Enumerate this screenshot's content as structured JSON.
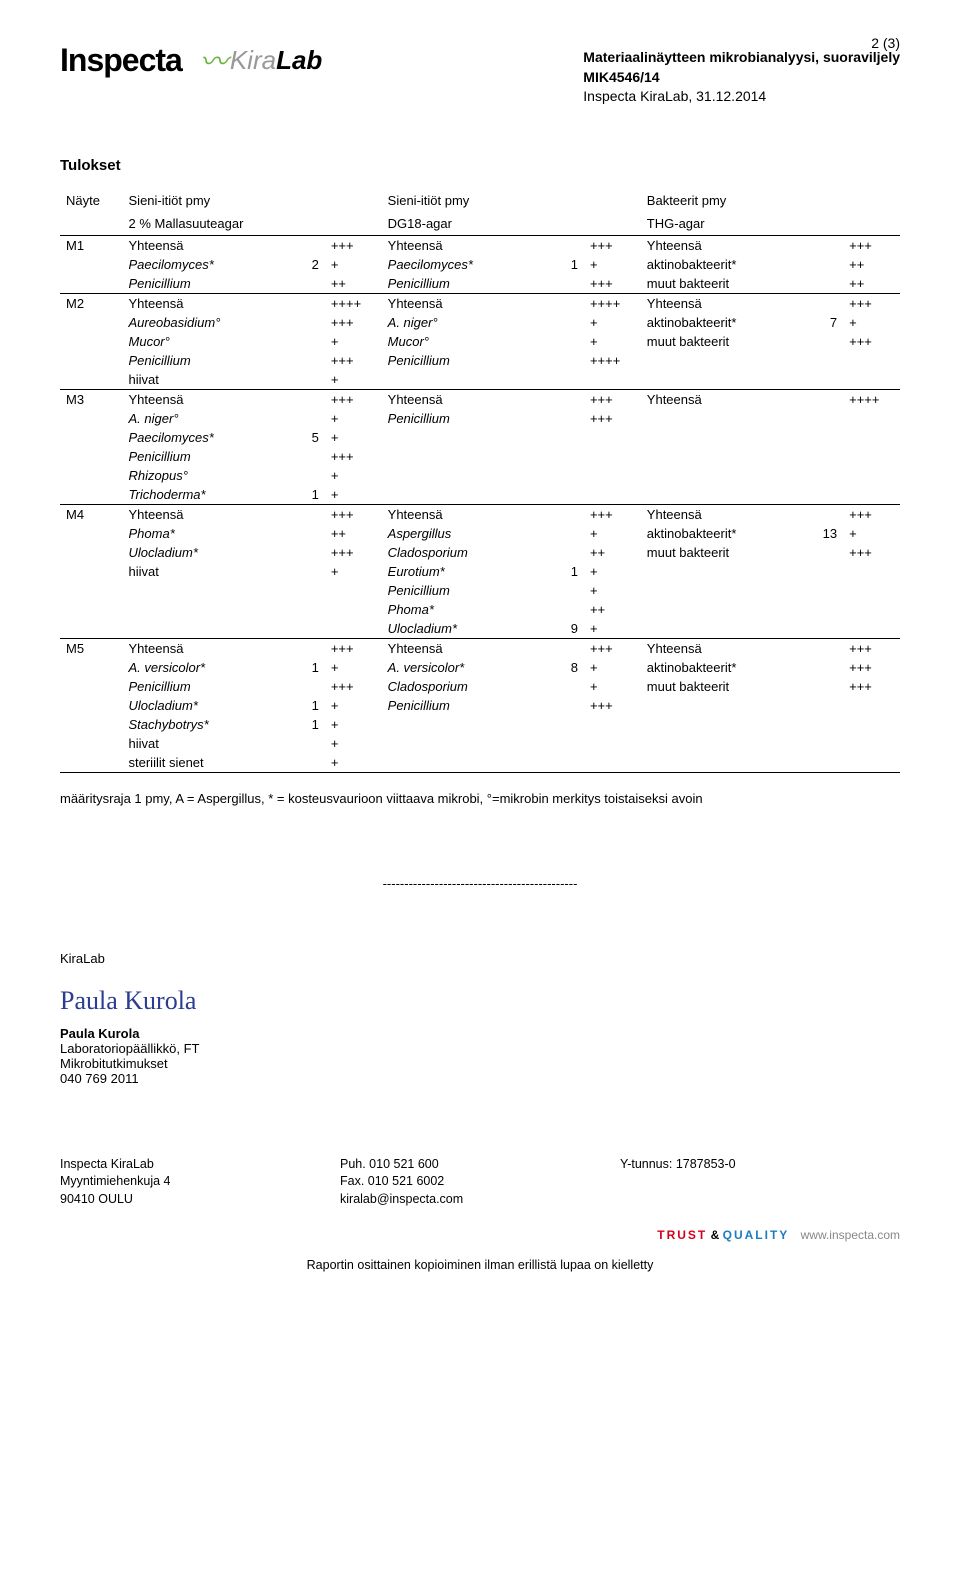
{
  "page_number": "2  (3)",
  "header": {
    "title1": "Materiaalinäytteen mikrobianalyysi, suoraviljely",
    "title2": "MIK4546/14",
    "title3": "Inspecta KiraLab, 31.12.2014",
    "logo_inspecta": "Inspecta",
    "logo_kira": "Kira",
    "logo_lab": "Lab"
  },
  "section_title": "Tulokset",
  "cols": {
    "sample": "Näyte",
    "c1a": "Sieni-itiöt pmy",
    "c1b": "2 % Mallasuuteagar",
    "c2a": "Sieni-itiöt pmy",
    "c2b": "DG18-agar",
    "c3a": "Bakteerit pmy",
    "c3b": "THG-agar"
  },
  "rows": [
    {
      "id": "M1",
      "a": [
        [
          "Yhteensä",
          "",
          "+++"
        ],
        [
          "Paecilomyces*",
          "2",
          "+"
        ],
        [
          "Penicillium",
          "",
          "++"
        ]
      ],
      "b": [
        [
          "Yhteensä",
          "",
          "+++"
        ],
        [
          "Paecilomyces*",
          "1",
          "+"
        ],
        [
          "Penicillium",
          "",
          "+++"
        ]
      ],
      "c": [
        [
          "Yhteensä",
          "",
          "+++"
        ],
        [
          "aktinobakteerit*",
          "",
          "++"
        ],
        [
          "muut bakteerit",
          "",
          "++"
        ]
      ]
    },
    {
      "id": "M2",
      "a": [
        [
          "Yhteensä",
          "",
          "++++"
        ],
        [
          "Aureobasidium°",
          "",
          "+++"
        ],
        [
          "Mucor°",
          "",
          "+"
        ],
        [
          "Penicillium",
          "",
          "+++"
        ],
        [
          "hiivat",
          "",
          "+"
        ]
      ],
      "b": [
        [
          "Yhteensä",
          "",
          "++++"
        ],
        [
          "A. niger°",
          "",
          "+"
        ],
        [
          "Mucor°",
          "",
          "+"
        ],
        [
          "Penicillium",
          "",
          "++++"
        ]
      ],
      "c": [
        [
          "Yhteensä",
          "",
          "+++"
        ],
        [
          "aktinobakteerit*",
          "7",
          "+"
        ],
        [
          "muut bakteerit",
          "",
          "+++"
        ]
      ]
    },
    {
      "id": "M3",
      "a": [
        [
          "Yhteensä",
          "",
          "+++"
        ],
        [
          "A. niger°",
          "",
          "+"
        ],
        [
          "Paecilomyces*",
          "5",
          "+"
        ],
        [
          "Penicillium",
          "",
          "+++"
        ],
        [
          "Rhizopus°",
          "",
          "+"
        ],
        [
          "Trichoderma*",
          "1",
          "+"
        ]
      ],
      "b": [
        [
          "Yhteensä",
          "",
          "+++"
        ],
        [
          "Penicillium",
          "",
          "+++"
        ]
      ],
      "c": [
        [
          "Yhteensä",
          "",
          "++++"
        ]
      ]
    },
    {
      "id": "M4",
      "a": [
        [
          "Yhteensä",
          "",
          "+++"
        ],
        [
          "Phoma*",
          "",
          "++"
        ],
        [
          "Ulocladium*",
          "",
          "+++"
        ],
        [
          "hiivat",
          "",
          "+"
        ]
      ],
      "b": [
        [
          "Yhteensä",
          "",
          "+++"
        ],
        [
          "Aspergillus",
          "",
          "+"
        ],
        [
          "Cladosporium",
          "",
          "++"
        ],
        [
          "Eurotium*",
          "1",
          "+"
        ],
        [
          "Penicillium",
          "",
          "+"
        ],
        [
          "Phoma*",
          "",
          "++"
        ],
        [
          "Ulocladium*",
          "9",
          "+"
        ]
      ],
      "c": [
        [
          "Yhteensä",
          "",
          "+++"
        ],
        [
          "aktinobakteerit*",
          "13",
          "+"
        ],
        [
          "muut bakteerit",
          "",
          "+++"
        ]
      ]
    },
    {
      "id": "M5",
      "a": [
        [
          "Yhteensä",
          "",
          "+++"
        ],
        [
          "A. versicolor*",
          "1",
          "+"
        ],
        [
          "Penicillium",
          "",
          "+++"
        ],
        [
          "Ulocladium*",
          "1",
          "+"
        ],
        [
          "Stachybotrys*",
          "1",
          "+"
        ],
        [
          "hiivat",
          "",
          "+"
        ],
        [
          "steriilit sienet",
          "",
          "+"
        ]
      ],
      "b": [
        [
          "Yhteensä",
          "",
          "+++"
        ],
        [
          "A. versicolor*",
          "8",
          "+"
        ],
        [
          "Cladosporium",
          "",
          "+"
        ],
        [
          "Penicillium",
          "",
          "+++"
        ]
      ],
      "c": [
        [
          "Yhteensä",
          "",
          "+++"
        ],
        [
          "aktinobakteerit*",
          "",
          "+++"
        ],
        [
          "muut bakteerit",
          "",
          "+++"
        ]
      ]
    }
  ],
  "legend": "määritysraja 1 pmy, A = Aspergillus, * = kosteusvaurioon viittaava mikrobi, °=mikrobin merkitys toistaiseksi avoin",
  "dashes": "---------------------------------------------",
  "sig": {
    "lab": "KiraLab",
    "signature": "Paula  Kurola",
    "name": "Paula Kurola",
    "title": "Laboratoriopäällikkö, FT",
    "dept": "Mikrobitutkimukset",
    "phone": "040 769 2011"
  },
  "footer": {
    "c1a": "Inspecta KiraLab",
    "c1b": "Myyntimiehenkuja 4",
    "c1c": "90410 OULU",
    "c2a": "Puh. 010 521 600",
    "c2b": "Fax. 010 521 6002",
    "c2c": "kiralab@inspecta.com",
    "c3a": "Y-tunnus: 1787853-0"
  },
  "trust": {
    "t1": "TRUST",
    "amp": "&",
    "t2": "QUALITY",
    "site": "www.inspecta.com"
  },
  "bottom": "Raportin osittainen kopioiminen ilman erillistä lupaa on kielletty"
}
